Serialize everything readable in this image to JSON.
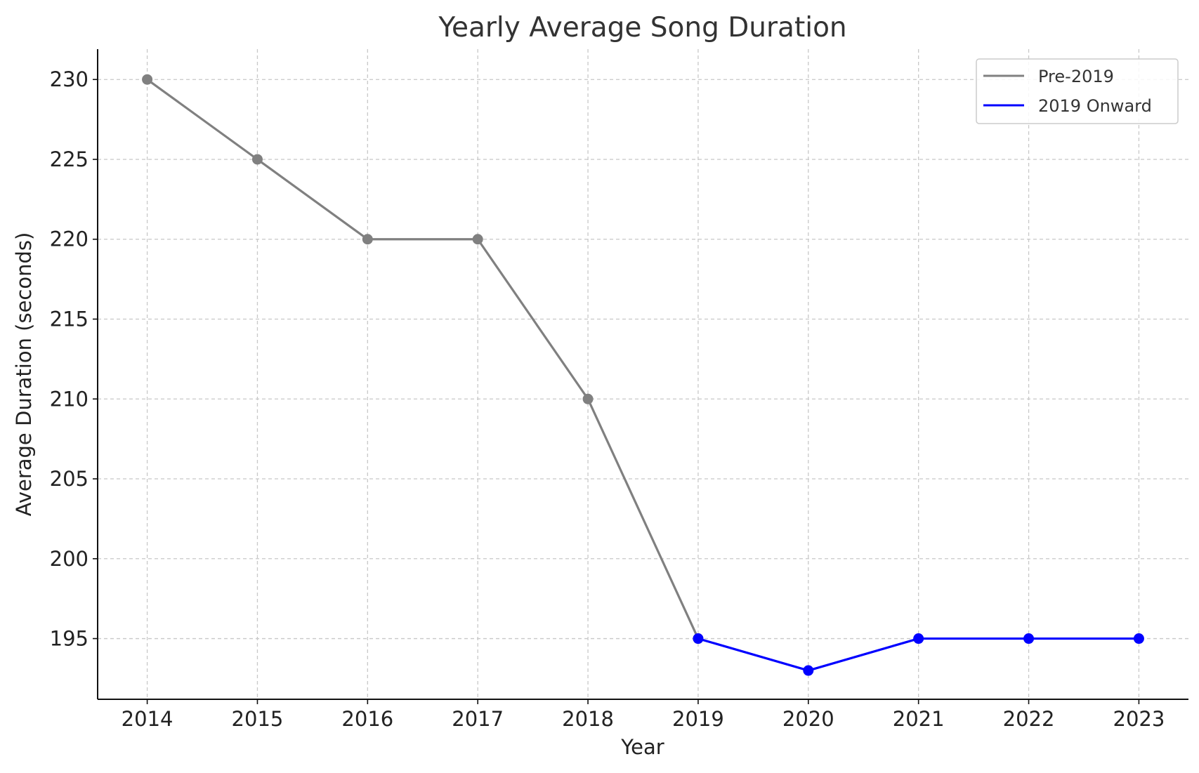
{
  "chart_data": {
    "type": "line",
    "title": "Yearly Average Song Duration",
    "xlabel": "Year",
    "ylabel": "Average Duration (seconds)",
    "x": [
      2014,
      2015,
      2016,
      2017,
      2018,
      2019,
      2020,
      2021,
      2022,
      2023
    ],
    "x_ticks": [
      "2014",
      "2015",
      "2016",
      "2017",
      "2018",
      "2019",
      "2020",
      "2021",
      "2022",
      "2023"
    ],
    "y_ticks": [
      195,
      200,
      205,
      210,
      215,
      220,
      225,
      230
    ],
    "xlim": [
      2013.55,
      2023.45
    ],
    "ylim": [
      191.2,
      231.9
    ],
    "grid": true,
    "legend_position": "top-right",
    "series": [
      {
        "name": "Pre-2019",
        "color": "#808080",
        "x": [
          2014,
          2015,
          2016,
          2017,
          2018,
          2019
        ],
        "values": [
          230,
          225,
          220,
          220,
          210,
          195
        ]
      },
      {
        "name": "2019 Onward",
        "color": "#0000ff",
        "x": [
          2019,
          2020,
          2021,
          2022,
          2023
        ],
        "values": [
          195,
          193,
          195,
          195,
          195
        ]
      }
    ]
  }
}
